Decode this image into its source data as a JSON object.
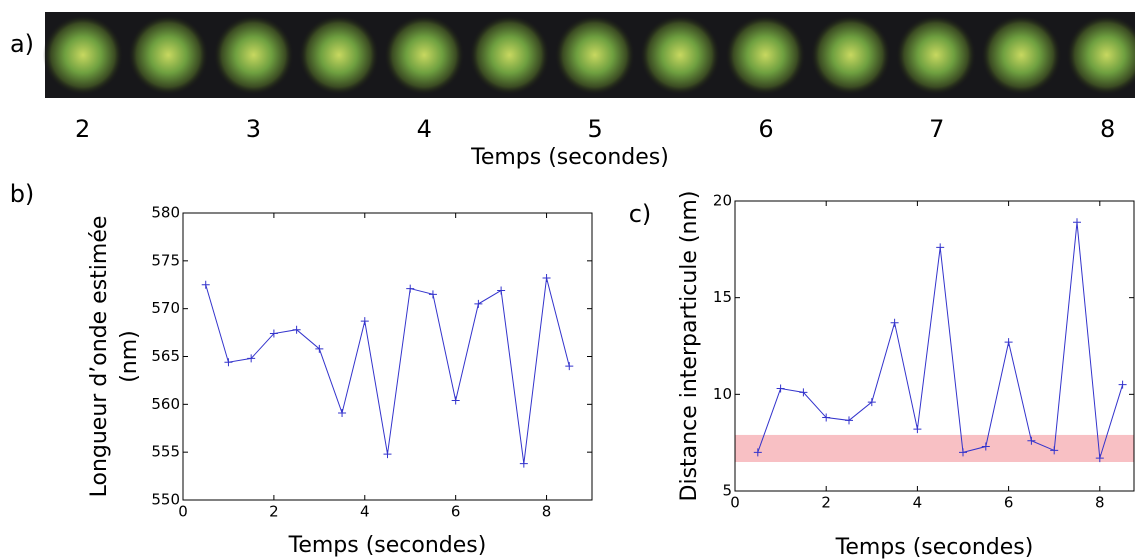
{
  "chart_data": [
    {
      "type": "image-strip",
      "panel_label": "a)",
      "xlim": [
        1.78,
        8.16
      ],
      "xticks": [
        2,
        3,
        4,
        5,
        6,
        7,
        8
      ],
      "xlabel": "Temps (secondes)"
    },
    {
      "type": "line",
      "panel_label": "b)",
      "ylabel": [
        "Longueur d’onde estimée",
        "(nm)"
      ],
      "xlabel": "Temps (secondes)",
      "xlim": [
        0,
        9
      ],
      "xticks": [
        0,
        2,
        4,
        6,
        8
      ],
      "ylim": [
        550,
        580
      ],
      "yticks": [
        550,
        555,
        560,
        565,
        570,
        575,
        580
      ],
      "x": [
        0.5,
        1,
        1.5,
        2,
        2.5,
        3,
        3.5,
        4,
        4.5,
        5,
        5.5,
        6,
        6.5,
        7,
        7.5,
        8,
        8.5
      ],
      "series": [
        {
          "color": "#3333cc",
          "values": [
            572.5,
            564.4,
            564.8,
            567.4,
            567.8,
            565.8,
            559.1,
            568.7,
            554.8,
            572.1,
            571.5,
            560.4,
            570.5,
            571.9,
            553.8,
            573.2,
            564.0
          ]
        }
      ]
    },
    {
      "type": "line",
      "panel_label": "c)",
      "ylabel": [
        "Distance interparticule (nm)"
      ],
      "xlabel": "Temps (secondes)",
      "xlim": [
        0,
        8.75
      ],
      "xticks": [
        0,
        2,
        4,
        6,
        8
      ],
      "ylim": [
        5,
        20
      ],
      "yticks": [
        5,
        10,
        15,
        20
      ],
      "band": [
        6.5,
        7.9
      ],
      "band_color": "#f8c0c4",
      "x": [
        0.5,
        1,
        1.5,
        2,
        2.5,
        3,
        3.5,
        4,
        4.5,
        5,
        5.5,
        6,
        6.5,
        7,
        7.5,
        8,
        8.5
      ],
      "series": [
        {
          "color": "#3333cc",
          "values": [
            7.0,
            10.3,
            10.1,
            8.8,
            8.65,
            9.6,
            13.7,
            8.2,
            17.6,
            7.0,
            7.3,
            12.7,
            7.6,
            7.1,
            18.9,
            6.7,
            10.5
          ]
        }
      ]
    }
  ]
}
